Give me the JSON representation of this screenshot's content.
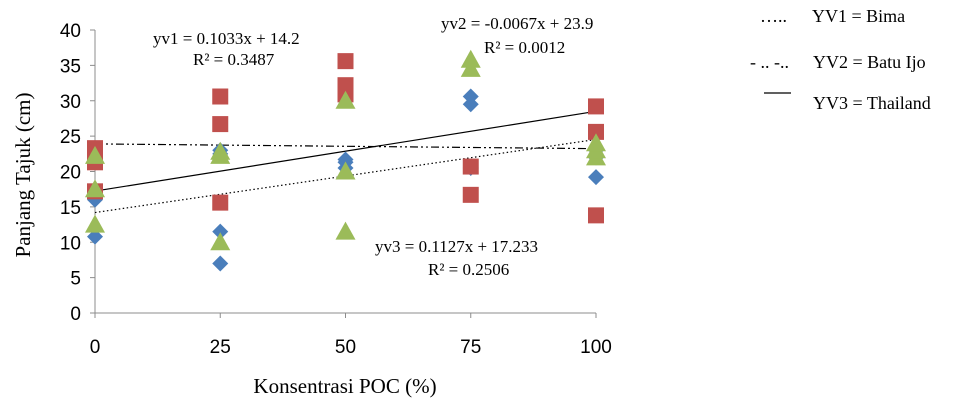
{
  "chart_data": {
    "type": "scatter",
    "xlabel": "Konsentrasi POC (%)",
    "ylabel": "Panjang Tajuk (cm)",
    "xlim": [
      0,
      100
    ],
    "ylim": [
      0,
      40
    ],
    "x_ticks": [
      "0",
      "25",
      "50",
      "75",
      "100"
    ],
    "y_ticks": [
      "0",
      "5",
      "10",
      "15",
      "20",
      "25",
      "30",
      "35",
      "40"
    ],
    "grid": false,
    "legend_position": "top-right",
    "series": [
      {
        "name": "YV1 = Bima",
        "marker": "diamond",
        "color": "#4a7ebb",
        "x": [
          0,
          0,
          0,
          25,
          25,
          25,
          25,
          50,
          50,
          50,
          75,
          75,
          75,
          100,
          100,
          100
        ],
        "y": [
          10.8,
          16.0,
          17.0,
          7.0,
          11.5,
          22.5,
          23.0,
          20.5,
          21.3,
          21.7,
          20.5,
          29.5,
          30.6,
          19.2,
          22.0,
          23.0
        ]
      },
      {
        "name": "YV2 = Batu Ijo",
        "marker": "square",
        "color": "#c0504d",
        "x": [
          0,
          0,
          0,
          25,
          25,
          25,
          50,
          50,
          50,
          75,
          75,
          100,
          100,
          100
        ],
        "y": [
          17.2,
          21.3,
          23.3,
          15.6,
          26.7,
          30.6,
          30.9,
          32.2,
          35.6,
          16.7,
          20.7,
          13.8,
          25.6,
          29.2
        ],
        "trend": {
          "slope": -0.0067,
          "intercept": 23.9,
          "style": "dash-dot-dot",
          "label": "yv2 = -0.0067x + 23.9",
          "r2": "R² = 0.0012"
        }
      },
      {
        "name": "YV3 = Thailand",
        "marker": "triangle",
        "color": "#9bbb59",
        "x": [
          0,
          0,
          0,
          25,
          25,
          25,
          50,
          50,
          50,
          75,
          75,
          100,
          100,
          100
        ],
        "y": [
          12.5,
          17.5,
          22.2,
          10.0,
          22.2,
          22.8,
          11.5,
          20.0,
          30.0,
          34.5,
          35.8,
          22.0,
          23.0,
          24.0
        ],
        "trend": {
          "slope": 0.1127,
          "intercept": 17.233,
          "style": "solid",
          "label": "yv3 = 0.1127x + 17.233",
          "r2": "R² = 0.2506"
        }
      }
    ],
    "trend_yv1": {
      "slope": 0.1033,
      "intercept": 14.2,
      "style": "dotted",
      "label": "yv1 = 0.1033x + 14.2",
      "r2": "R² = 0.3487"
    },
    "legend": [
      {
        "line_glyph": "…..",
        "label": "YV1 = Bima"
      },
      {
        "line_glyph": "- .. -..",
        "label": "YV2 = Batu Ijo"
      },
      {
        "line_glyph": "",
        "label": "YV3 = Thailand"
      }
    ]
  }
}
